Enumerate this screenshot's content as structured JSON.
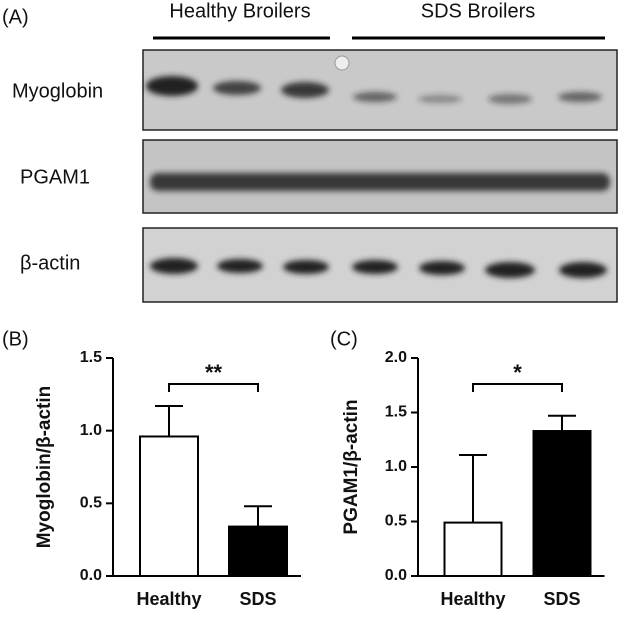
{
  "blot": {
    "panel": "(A)",
    "groups": [
      "Healthy Broilers",
      "SDS Broilers"
    ],
    "rows": [
      "Myoglobin",
      "PGAM1",
      "β-actin"
    ]
  },
  "chart_data": [
    {
      "type": "bar",
      "panel": "(B)",
      "y_label": "Myoglobin/β-actin",
      "categories": [
        "Healthy",
        "SDS"
      ],
      "values": [
        0.96,
        0.34
      ],
      "errors": [
        0.21,
        0.14
      ],
      "colors": [
        "#ffffff",
        "#000000"
      ],
      "ylim": [
        0,
        1.5
      ],
      "yticks": [
        {
          "value": 0,
          "label": "0.0"
        },
        {
          "value": 0.5,
          "label": "0.5"
        },
        {
          "value": 1,
          "label": "1.0"
        },
        {
          "value": 1.5,
          "label": "1.5"
        }
      ],
      "annotation": "**"
    },
    {
      "type": "bar",
      "panel": "(C)",
      "y_label": "PGAM1/β-actin",
      "categories": [
        "Healthy",
        "SDS"
      ],
      "values": [
        0.49,
        1.33
      ],
      "errors": [
        0.62,
        0.14
      ],
      "colors": [
        "#ffffff",
        "#000000"
      ],
      "ylim": [
        0,
        2
      ],
      "yticks": [
        {
          "value": 0,
          "label": "0.0"
        },
        {
          "value": 0.5,
          "label": "0.5"
        },
        {
          "value": 1,
          "label": "1.0"
        },
        {
          "value": 1.5,
          "label": "1.5"
        },
        {
          "value": 2,
          "label": "2.0"
        }
      ],
      "annotation": "*"
    }
  ]
}
